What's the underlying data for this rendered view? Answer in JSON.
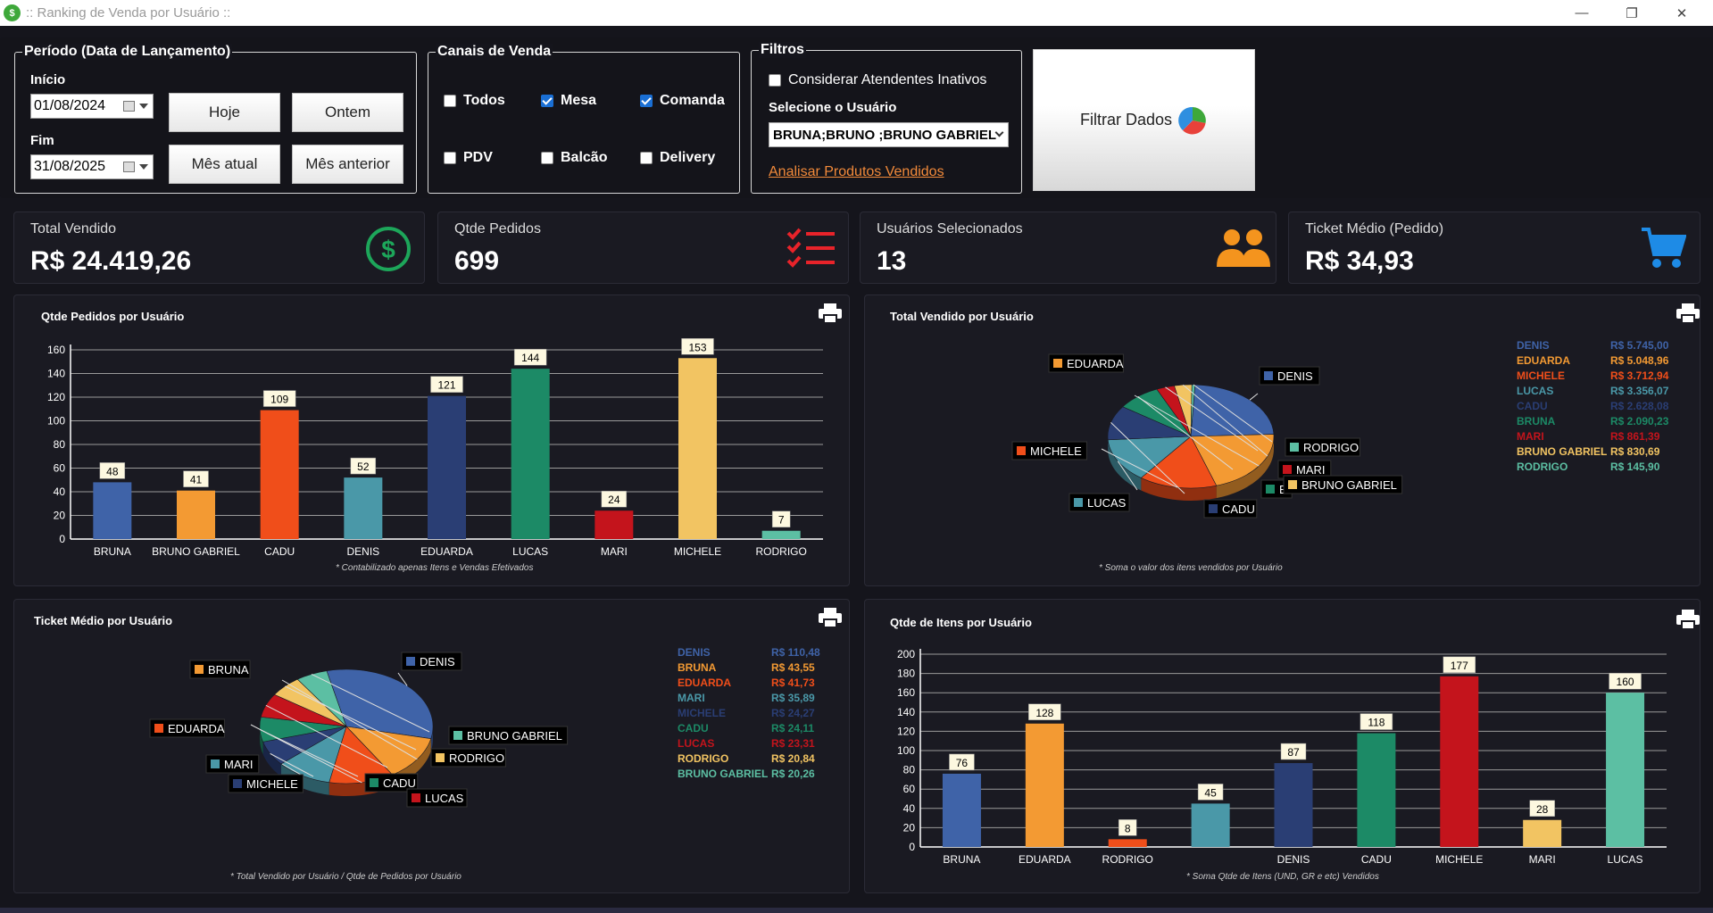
{
  "window": {
    "title": ":: Ranking de Venda por Usuário ::",
    "minimize": "—",
    "restore": "❐",
    "close": "✕"
  },
  "periodo": {
    "group_title": "Período (Data de Lançamento)",
    "inicio_label": "Início",
    "inicio_value": "01/08/2024",
    "fim_label": "Fim",
    "fim_value": "31/08/2025",
    "btn_hoje": "Hoje",
    "btn_ontem": "Ontem",
    "btn_mes_atual": "Mês atual",
    "btn_mes_anterior": "Mês anterior"
  },
  "canais": {
    "group_title": "Canais de Venda",
    "items": [
      {
        "label": "Todos",
        "checked": false
      },
      {
        "label": "Mesa",
        "checked": true
      },
      {
        "label": "Comanda",
        "checked": true
      },
      {
        "label": "PDV",
        "checked": false
      },
      {
        "label": "Balcão",
        "checked": false
      },
      {
        "label": "Delivery",
        "checked": false
      }
    ]
  },
  "filtros": {
    "group_title": "Filtros",
    "inativos_label": "Considerar Atendentes Inativos",
    "usuario_label": "Selecione o Usuário",
    "usuario_value": "BRUNA;BRUNO ;BRUNO GABRIEL",
    "analisar_link": "Analisar Produtos Vendidos"
  },
  "filtrar_btn": "Filtrar Dados",
  "kpis": {
    "total_vendido": {
      "title": "Total Vendido",
      "value": "R$ 24.419,26"
    },
    "qtde_pedidos": {
      "title": "Qtde Pedidos",
      "value": "699"
    },
    "usuarios": {
      "title": "Usuários Selecionados",
      "value": "13"
    },
    "ticket": {
      "title": "Ticket Médio (Pedido)",
      "value": "R$ 34,93"
    }
  },
  "colors": {
    "BRUNA": "#3f63a8",
    "BRUNO GABRIEL": "#f39a33",
    "CADU": "#f04e1a",
    "DENIS": "#4a98a8",
    "EDUARDA": "#2a3e74",
    "LUCAS": "#1c8a66",
    "MARI": "#c4141c",
    "MICHELE": "#f2c462",
    "RODRIGO": "#5cbfa3"
  },
  "chart_data": [
    {
      "id": "qtde_pedidos",
      "type": "bar",
      "title": "Qtde Pedidos por Usuário",
      "categories": [
        "BRUNA",
        "BRUNO GABRIEL",
        "CADU",
        "DENIS",
        "EDUARDA",
        "LUCAS",
        "MARI",
        "MICHELE",
        "RODRIGO"
      ],
      "values": [
        48,
        41,
        109,
        52,
        121,
        144,
        24,
        153,
        7
      ],
      "colors": [
        "#3f63a8",
        "#f39a33",
        "#f04e1a",
        "#4a98a8",
        "#2a3e74",
        "#1c8a66",
        "#c4141c",
        "#f2c462",
        "#5cbfa3"
      ],
      "ylim": [
        0,
        160
      ],
      "yticks": [
        0,
        20,
        40,
        60,
        80,
        100,
        120,
        140,
        160
      ],
      "footnote": "* Contabilizado apenas Itens e Vendas Efetivados"
    },
    {
      "id": "total_vendido",
      "type": "pie",
      "title": "Total Vendido por Usuário",
      "labels": [
        "DENIS",
        "EDUARDA",
        "MICHELE",
        "LUCAS",
        "CADU",
        "BRUNA",
        "MARI",
        "BRUNO GABRIEL",
        "RODRIGO"
      ],
      "values": [
        5745.0,
        5048.96,
        3712.94,
        3356.07,
        2628.08,
        2090.23,
        861.39,
        830.69,
        145.9
      ],
      "value_labels": [
        "R$ 5.745,00",
        "R$ 5.048,96",
        "R$ 3.712,94",
        "R$ 3.356,07",
        "R$ 2.628,08",
        "R$ 2.090,23",
        "R$ 861,39",
        "R$ 830,69",
        "R$ 145,90"
      ],
      "colors": [
        "#3f63a8",
        "#f39a33",
        "#f04e1a",
        "#4a98a8",
        "#2a3e74",
        "#1c8a66",
        "#c4141c",
        "#f2c462",
        "#5cbfa3"
      ],
      "pie_labels": [
        "DENIS",
        "EDUARDA",
        "MICHELE",
        "LUCAS",
        "CADU",
        "B",
        "MARI",
        "BRUNO GABRIEL",
        "RODRIGO"
      ],
      "footnote": "* Soma o valor dos itens vendidos por Usuário"
    },
    {
      "id": "ticket_medio",
      "type": "pie",
      "title": "Ticket Médio por Usuário",
      "labels": [
        "DENIS",
        "BRUNA",
        "EDUARDA",
        "MARI",
        "MICHELE",
        "CADU",
        "LUCAS",
        "RODRIGO",
        "BRUNO GABRIEL"
      ],
      "values": [
        110.48,
        43.55,
        41.73,
        35.89,
        24.27,
        24.11,
        23.31,
        20.84,
        20.26
      ],
      "value_labels": [
        "R$ 110,48",
        "R$ 43,55",
        "R$ 41,73",
        "R$ 35,89",
        "R$ 24,27",
        "R$ 24,11",
        "R$ 23,31",
        "R$ 20,84",
        "R$ 20,26"
      ],
      "colors": [
        "#3f63a8",
        "#f39a33",
        "#f04e1a",
        "#4a98a8",
        "#2a3e74",
        "#1c8a66",
        "#c4141c",
        "#f2c462",
        "#5cbfa3"
      ],
      "footnote": "* Total Vendido por Usuário / Qtde de Pedidos por Usuário"
    },
    {
      "id": "qtde_itens",
      "type": "bar",
      "title": "Qtde de Itens por Usuário",
      "categories": [
        "BRUNA",
        "EDUARDA",
        "RODRIGO",
        "",
        "DENIS",
        "CADU",
        "MICHELE",
        "MARI",
        "LUCAS"
      ],
      "values": [
        76,
        128,
        8,
        45,
        87,
        118,
        177,
        28,
        160
      ],
      "colors": [
        "#3f63a8",
        "#f39a33",
        "#f04e1a",
        "#4a98a8",
        "#2a3e74",
        "#1c8a66",
        "#c4141c",
        "#f2c462",
        "#5cbfa3"
      ],
      "ylim": [
        0,
        200
      ],
      "yticks": [
        0,
        20,
        40,
        60,
        80,
        100,
        120,
        140,
        160,
        180,
        200
      ],
      "footnote": "* Soma Qtde de Itens (UND, GR e etc) Vendidos"
    }
  ]
}
